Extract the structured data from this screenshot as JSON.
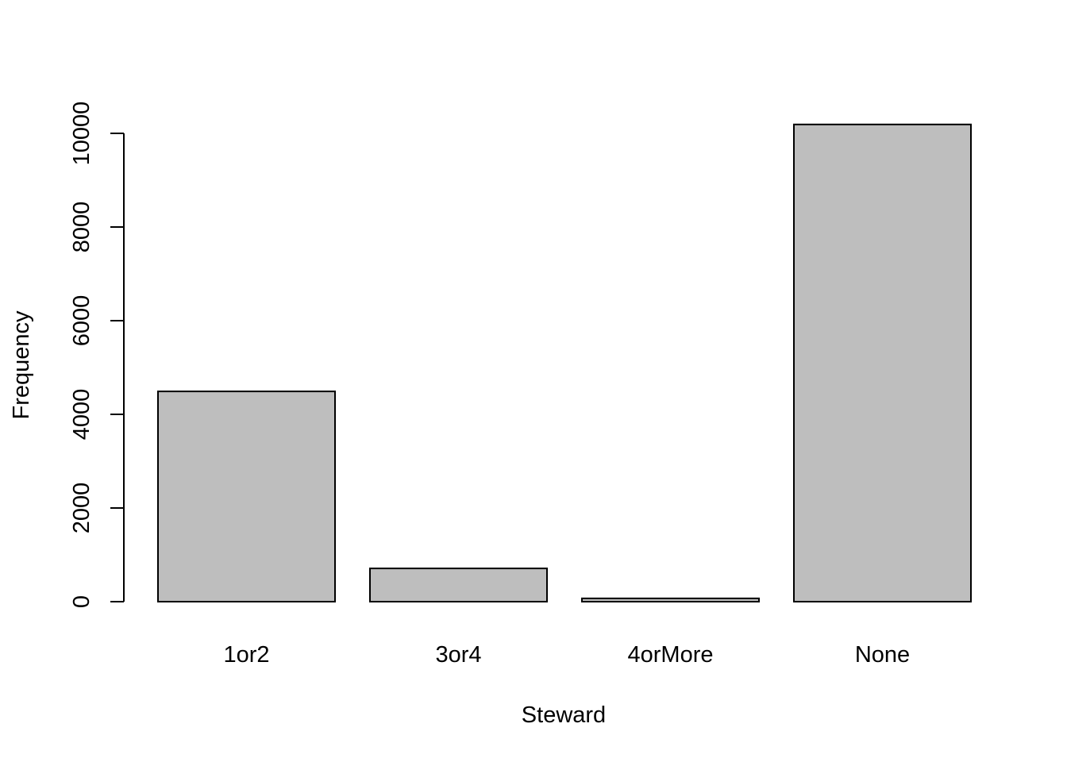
{
  "chart_data": {
    "type": "bar",
    "title": "",
    "xlabel": "Steward",
    "ylabel": "Frequency",
    "categories": [
      "1or2",
      "3or4",
      "4orMore",
      "None"
    ],
    "values": [
      4490,
      710,
      70,
      10190
    ],
    "ylim": [
      0,
      10500
    ],
    "yticks": [
      0,
      2000,
      4000,
      6000,
      8000,
      10000
    ],
    "ytick_labels": [
      "0",
      "2000",
      "4000",
      "6000",
      "8000",
      "10000"
    ],
    "bar_fill": "#bebebe",
    "bar_stroke": "#000000",
    "grid": false,
    "legend": "none"
  }
}
